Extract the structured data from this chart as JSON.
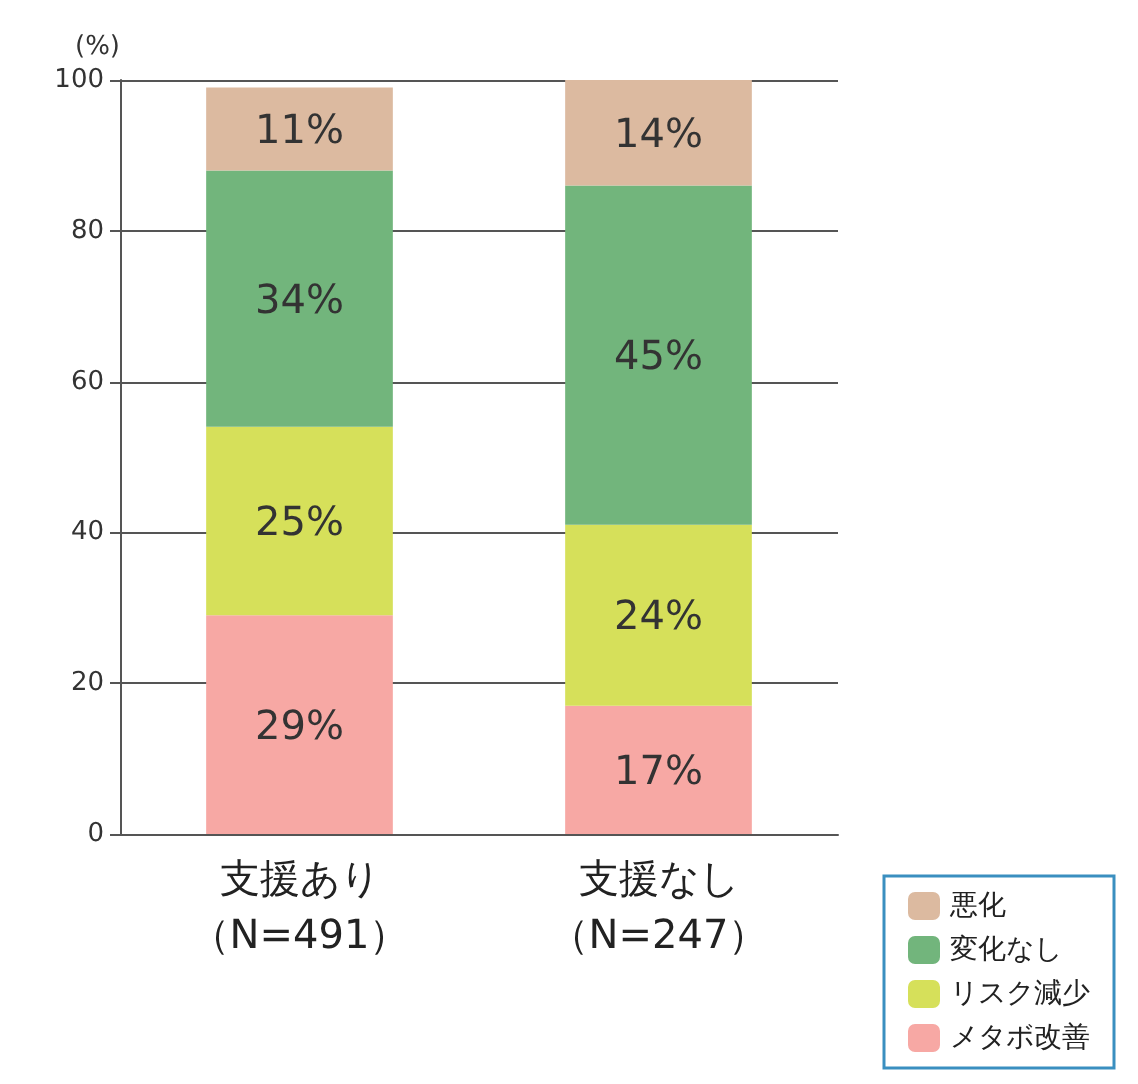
{
  "chart_data": {
    "type": "bar",
    "stacked": true,
    "ylabel": "(%)",
    "categories": [
      "支援あり（N=491）",
      "支援なし（N=247）"
    ],
    "series": [
      {
        "name": "メタボ改善",
        "color": "#f7a8a4",
        "values": [
          29,
          17
        ],
        "value_labels": [
          "29%",
          "17%"
        ]
      },
      {
        "name": "リスク減少",
        "color": "#d6e05a",
        "values": [
          25,
          24
        ],
        "value_labels": [
          "25%",
          "24%"
        ]
      },
      {
        "name": "変化なし",
        "color": "#72b57c",
        "values": [
          34,
          45
        ],
        "value_labels": [
          "34%",
          "45%"
        ]
      },
      {
        "name": "悪化",
        "color": "#dcbaa0",
        "values": [
          11,
          14
        ],
        "value_labels": [
          "11%",
          "14%"
        ]
      }
    ],
    "ylim": [
      0,
      100
    ],
    "yticks": [
      0,
      20,
      40,
      60,
      80,
      100
    ],
    "grid": "y",
    "legend": "bottom right"
  }
}
